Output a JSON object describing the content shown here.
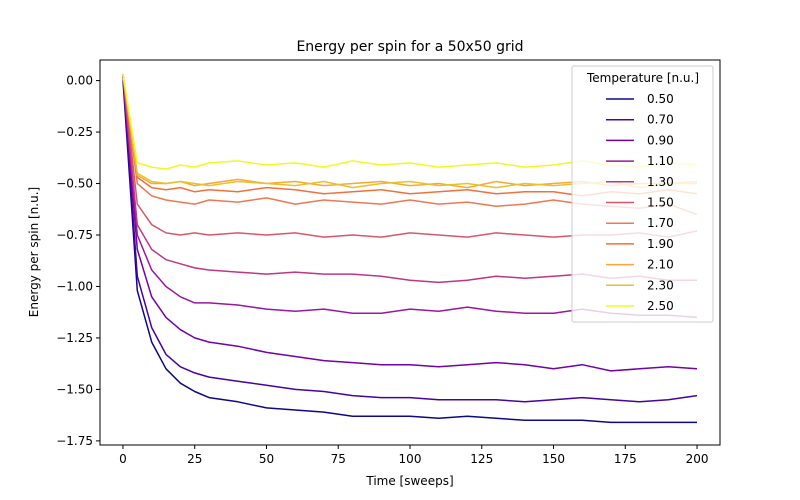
{
  "chart_data": {
    "type": "line",
    "title": "Energy per spin for a 50x50 grid",
    "xlabel": "Time [sweeps]",
    "ylabel": "Energy per spin [n.u.]",
    "xlim": [
      -8,
      208
    ],
    "ylim": [
      -1.77,
      0.1
    ],
    "xticks": [
      0,
      25,
      50,
      75,
      100,
      125,
      150,
      175,
      200
    ],
    "xtick_labels": [
      "0",
      "25",
      "50",
      "75",
      "100",
      "125",
      "150",
      "175",
      "200"
    ],
    "yticks": [
      0.0,
      -0.25,
      -0.5,
      -0.75,
      -1.0,
      -1.25,
      -1.5,
      -1.75
    ],
    "ytick_labels": [
      "0.00",
      "−0.25",
      "−0.50",
      "−0.75",
      "−1.00",
      "−1.25",
      "−1.50",
      "−1.75"
    ],
    "grid": false,
    "legend": {
      "title": "Temperature [n.u.]",
      "placement": "upper-right"
    },
    "series": [
      {
        "name": "0.50",
        "color": "#0d0887",
        "x": [
          0,
          5,
          10,
          15,
          20,
          25,
          30,
          40,
          50,
          60,
          70,
          80,
          90,
          100,
          110,
          120,
          130,
          140,
          150,
          160,
          170,
          180,
          190,
          200
        ],
        "y": [
          0.0,
          -1.02,
          -1.27,
          -1.4,
          -1.47,
          -1.51,
          -1.54,
          -1.56,
          -1.59,
          -1.6,
          -1.61,
          -1.63,
          -1.63,
          -1.63,
          -1.64,
          -1.63,
          -1.64,
          -1.65,
          -1.65,
          -1.65,
          -1.66,
          -1.66,
          -1.66,
          -1.66
        ]
      },
      {
        "name": "0.70",
        "color": "#46039f",
        "x": [
          0,
          5,
          10,
          15,
          20,
          25,
          30,
          40,
          50,
          60,
          70,
          80,
          90,
          100,
          110,
          120,
          130,
          140,
          150,
          160,
          170,
          180,
          190,
          200
        ],
        "y": [
          0.02,
          -0.95,
          -1.2,
          -1.33,
          -1.39,
          -1.42,
          -1.44,
          -1.46,
          -1.48,
          -1.5,
          -1.51,
          -1.53,
          -1.54,
          -1.54,
          -1.55,
          -1.55,
          -1.55,
          -1.56,
          -1.55,
          -1.54,
          -1.55,
          -1.56,
          -1.55,
          -1.53
        ]
      },
      {
        "name": "0.90",
        "color": "#7201a8",
        "x": [
          0,
          5,
          10,
          15,
          20,
          25,
          30,
          40,
          50,
          60,
          70,
          80,
          90,
          100,
          110,
          120,
          130,
          140,
          150,
          160,
          170,
          180,
          190,
          200
        ],
        "y": [
          0.02,
          -0.82,
          -1.05,
          -1.15,
          -1.21,
          -1.25,
          -1.27,
          -1.29,
          -1.32,
          -1.34,
          -1.36,
          -1.37,
          -1.38,
          -1.38,
          -1.39,
          -1.38,
          -1.37,
          -1.38,
          -1.4,
          -1.38,
          -1.41,
          -1.4,
          -1.39,
          -1.4
        ]
      },
      {
        "name": "1.10",
        "color": "#9c179e",
        "x": [
          0,
          5,
          10,
          15,
          20,
          25,
          30,
          40,
          50,
          60,
          70,
          80,
          90,
          100,
          110,
          120,
          130,
          140,
          150,
          160,
          170,
          180,
          190,
          200
        ],
        "y": [
          0.02,
          -0.75,
          -0.92,
          -1.0,
          -1.05,
          -1.08,
          -1.08,
          -1.09,
          -1.11,
          -1.12,
          -1.11,
          -1.13,
          -1.13,
          -1.11,
          -1.12,
          -1.1,
          -1.12,
          -1.13,
          -1.13,
          -1.11,
          -1.13,
          -1.14,
          -1.14,
          -1.15
        ]
      },
      {
        "name": "1.30",
        "color": "#bd3786",
        "x": [
          0,
          5,
          10,
          15,
          20,
          25,
          30,
          40,
          50,
          60,
          70,
          80,
          90,
          100,
          110,
          120,
          130,
          140,
          150,
          160,
          170,
          180,
          190,
          200
        ],
        "y": [
          0.03,
          -0.7,
          -0.82,
          -0.87,
          -0.89,
          -0.91,
          -0.92,
          -0.93,
          -0.94,
          -0.93,
          -0.94,
          -0.94,
          -0.95,
          -0.97,
          -0.98,
          -0.97,
          -0.95,
          -0.96,
          -0.95,
          -0.94,
          -0.96,
          -0.95,
          -0.97,
          -0.97
        ]
      },
      {
        "name": "1.50",
        "color": "#d8576b",
        "x": [
          0,
          5,
          10,
          15,
          20,
          25,
          30,
          40,
          50,
          60,
          70,
          80,
          90,
          100,
          110,
          120,
          130,
          140,
          150,
          160,
          170,
          180,
          190,
          200
        ],
        "y": [
          0.03,
          -0.6,
          -0.7,
          -0.74,
          -0.75,
          -0.74,
          -0.75,
          -0.74,
          -0.75,
          -0.74,
          -0.76,
          -0.75,
          -0.76,
          -0.74,
          -0.75,
          -0.76,
          -0.74,
          -0.75,
          -0.76,
          -0.75,
          -0.75,
          -0.74,
          -0.76,
          -0.73
        ]
      },
      {
        "name": "1.70",
        "color": "#ed7953",
        "x": [
          0,
          5,
          10,
          15,
          20,
          25,
          30,
          40,
          50,
          60,
          70,
          80,
          90,
          100,
          110,
          120,
          130,
          140,
          150,
          160,
          170,
          180,
          190,
          200
        ],
        "y": [
          0.03,
          -0.5,
          -0.56,
          -0.58,
          -0.59,
          -0.6,
          -0.58,
          -0.59,
          -0.57,
          -0.6,
          -0.58,
          -0.59,
          -0.6,
          -0.58,
          -0.6,
          -0.59,
          -0.61,
          -0.6,
          -0.58,
          -0.6,
          -0.61,
          -0.62,
          -0.6,
          -0.65
        ]
      },
      {
        "name": "1.90",
        "color": "#f0713c",
        "x": [
          0,
          5,
          10,
          15,
          20,
          25,
          30,
          40,
          50,
          60,
          70,
          80,
          90,
          100,
          110,
          120,
          130,
          140,
          150,
          160,
          170,
          180,
          190,
          200
        ],
        "y": [
          0.03,
          -0.47,
          -0.52,
          -0.53,
          -0.52,
          -0.54,
          -0.53,
          -0.54,
          -0.52,
          -0.53,
          -0.55,
          -0.54,
          -0.53,
          -0.55,
          -0.54,
          -0.53,
          -0.55,
          -0.54,
          -0.54,
          -0.56,
          -0.54,
          -0.55,
          -0.53,
          -0.55
        ]
      },
      {
        "name": "2.10",
        "color": "#fca636",
        "x": [
          0,
          5,
          10,
          15,
          20,
          25,
          30,
          40,
          50,
          60,
          70,
          80,
          90,
          100,
          110,
          120,
          130,
          140,
          150,
          160,
          170,
          180,
          190,
          200
        ],
        "y": [
          0.03,
          -0.46,
          -0.5,
          -0.5,
          -0.49,
          -0.51,
          -0.5,
          -0.48,
          -0.5,
          -0.49,
          -0.51,
          -0.5,
          -0.49,
          -0.51,
          -0.5,
          -0.52,
          -0.49,
          -0.51,
          -0.5,
          -0.49,
          -0.51,
          -0.5,
          -0.5,
          -0.49
        ]
      },
      {
        "name": "2.30",
        "color": "#e6c22c",
        "x": [
          0,
          5,
          10,
          15,
          20,
          25,
          30,
          40,
          50,
          60,
          70,
          80,
          90,
          100,
          110,
          120,
          130,
          140,
          150,
          160,
          170,
          180,
          190,
          200
        ],
        "y": [
          0.03,
          -0.45,
          -0.49,
          -0.5,
          -0.49,
          -0.5,
          -0.51,
          -0.49,
          -0.5,
          -0.51,
          -0.49,
          -0.52,
          -0.5,
          -0.49,
          -0.51,
          -0.5,
          -0.52,
          -0.5,
          -0.51,
          -0.5,
          -0.49,
          -0.52,
          -0.5,
          -0.5
        ]
      },
      {
        "name": "2.50",
        "color": "#f0f921",
        "x": [
          0,
          5,
          10,
          15,
          20,
          25,
          30,
          40,
          50,
          60,
          70,
          80,
          90,
          100,
          110,
          120,
          130,
          140,
          150,
          160,
          170,
          180,
          190,
          200
        ],
        "y": [
          0.03,
          -0.4,
          -0.42,
          -0.43,
          -0.41,
          -0.42,
          -0.4,
          -0.39,
          -0.41,
          -0.4,
          -0.42,
          -0.39,
          -0.41,
          -0.4,
          -0.42,
          -0.41,
          -0.4,
          -0.42,
          -0.41,
          -0.39,
          -0.41,
          -0.42,
          -0.4,
          -0.41
        ]
      }
    ]
  }
}
